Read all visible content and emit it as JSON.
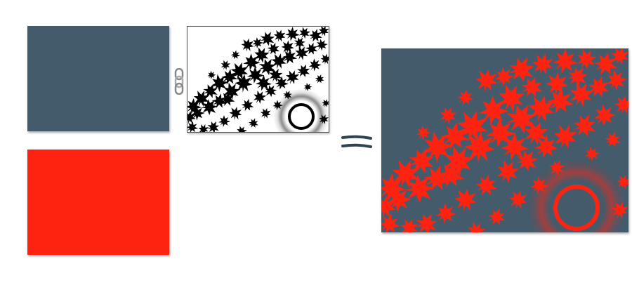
{
  "colors": {
    "base": "#445b6b",
    "overlay": "#fe2311",
    "mask_fg": "#000000",
    "mask_bg": "#ffffff"
  },
  "icons": {
    "link": "chain-link-icon",
    "equals": "equals-sign-icon"
  }
}
